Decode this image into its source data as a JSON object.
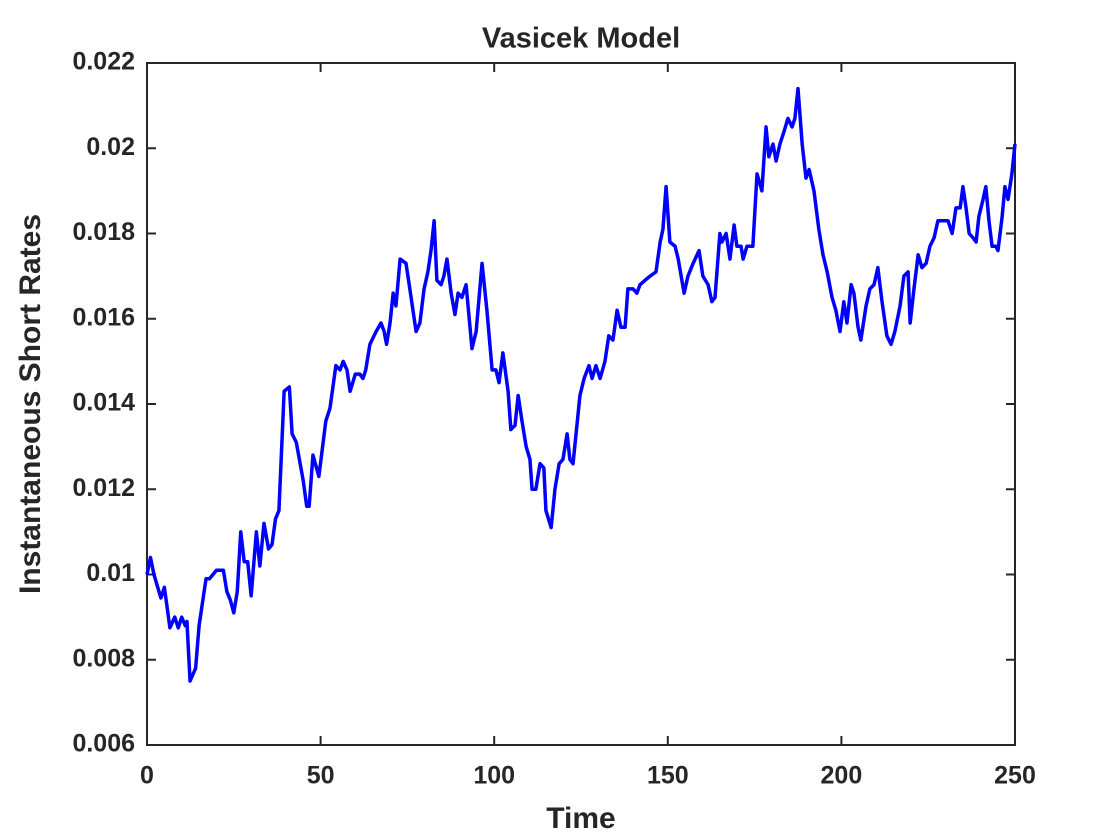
{
  "chart_data": {
    "type": "line",
    "title": "Vasicek Model",
    "x_label": "Time",
    "y_label": "Instantaneous Short Rates",
    "xlim": [
      0,
      250
    ],
    "xticks": [
      0,
      50,
      100,
      150,
      200,
      250
    ],
    "ylim": [
      0.006,
      0.022
    ],
    "yticks": [
      0.006,
      0.008,
      0.01,
      0.012,
      0.014,
      0.016,
      0.018,
      0.02,
      0.022
    ],
    "grid": false,
    "series": [
      {
        "color": "#0000ff",
        "x": [
          0,
          1,
          2,
          4,
          5,
          6.6,
          8,
          9,
          10,
          11,
          11.5,
          12.4,
          14,
          15,
          17,
          18,
          20,
          22,
          23,
          24,
          25,
          26,
          27,
          28,
          29,
          30,
          31.5,
          32.5,
          33.7,
          35,
          36,
          37,
          38,
          39.5,
          41,
          41.8,
          43,
          45,
          46,
          46.7,
          47.8,
          49.5,
          51.5,
          52.7,
          54.4,
          55.6,
          56.5,
          57.6,
          58.5,
          60,
          61.3,
          62.2,
          63,
          64.2,
          66,
          67.4,
          68.3,
          69,
          70,
          70.9,
          71.7,
          72.9,
          74.6,
          75.7,
          77.5,
          78.6,
          79.8,
          80.9,
          81.8,
          82.7,
          83.5,
          84.7,
          85.5,
          86.4,
          87.6,
          88.7,
          89.6,
          90.7,
          91.9,
          93.6,
          94.8,
          96.5,
          97.9,
          99.4,
          100.5,
          101.4,
          102.5,
          104,
          104.8,
          106,
          106.9,
          108,
          109.2,
          110.3,
          110.9,
          112,
          113.2,
          114.3,
          114.9,
          116.4,
          117.5,
          118.7,
          119.8,
          121,
          121.8,
          122.7,
          124.7,
          125.9,
          127.3,
          128.2,
          129.3,
          130.5,
          131.9,
          133,
          134.2,
          135.4,
          136.5,
          137.7,
          138.5,
          140,
          141.1,
          142,
          143.4,
          144.9,
          146.6,
          147.8,
          148.6,
          149.5,
          150.6,
          152.1,
          153,
          154.7,
          155.8,
          157.3,
          159,
          160.1,
          161.6,
          162.7,
          163.6,
          165,
          165.6,
          166.8,
          167.9,
          169.1,
          169.9,
          171.1,
          171.7,
          172.8,
          174.5,
          175.7,
          177.1,
          178.3,
          179.1,
          180.3,
          181.2,
          182.3,
          183.5,
          184.6,
          185.8,
          186.6,
          187.5,
          188.7,
          189.8,
          190.7,
          192.1,
          193.5,
          194.7,
          195.9,
          197.3,
          198.4,
          199.6,
          200.7,
          201.6,
          202.8,
          203.6,
          204.8,
          205.6,
          207.1,
          208.2,
          209.4,
          210.5,
          211.7,
          213.1,
          214.3,
          215.4,
          216.9,
          218,
          219.2,
          219.8,
          220.9,
          222.1,
          223.2,
          224.4,
          225.5,
          226.7,
          227.8,
          229.6,
          230.7,
          231.9,
          233,
          234.2,
          235,
          235.9,
          236.8,
          237.9,
          238.8,
          239.6,
          240.8,
          241.6,
          242.5,
          243.4,
          244.5,
          245.1,
          246.3,
          247.1,
          248,
          249.1,
          250
        ],
        "values": [
          0.01,
          0.0104,
          0.01,
          0.00945,
          0.0097,
          0.00875,
          0.009,
          0.00875,
          0.009,
          0.0088,
          0.0089,
          0.0075,
          0.0078,
          0.0088,
          0.0099,
          0.0099,
          0.0101,
          0.0101,
          0.0096,
          0.0094,
          0.0091,
          0.0096,
          0.011,
          0.0103,
          0.0103,
          0.0095,
          0.011,
          0.0102,
          0.0112,
          0.0106,
          0.0107,
          0.0113,
          0.0115,
          0.0143,
          0.0144,
          0.0133,
          0.0131,
          0.0122,
          0.0116,
          0.0116,
          0.0128,
          0.0123,
          0.0136,
          0.0139,
          0.0149,
          0.0148,
          0.015,
          0.0148,
          0.0143,
          0.0147,
          0.0147,
          0.0146,
          0.0148,
          0.0154,
          0.0157,
          0.0159,
          0.0157,
          0.0154,
          0.0159,
          0.0166,
          0.0163,
          0.0174,
          0.0173,
          0.0167,
          0.0157,
          0.0159,
          0.0167,
          0.0171,
          0.0176,
          0.0183,
          0.0169,
          0.0168,
          0.017,
          0.0174,
          0.0166,
          0.0161,
          0.0166,
          0.0165,
          0.0168,
          0.0153,
          0.0157,
          0.0173,
          0.0162,
          0.0148,
          0.0148,
          0.0145,
          0.0152,
          0.0143,
          0.0134,
          0.0135,
          0.0142,
          0.0136,
          0.013,
          0.0127,
          0.012,
          0.012,
          0.0126,
          0.0125,
          0.0115,
          0.0111,
          0.012,
          0.0126,
          0.0127,
          0.0133,
          0.0127,
          0.0126,
          0.0142,
          0.0146,
          0.0149,
          0.0146,
          0.0149,
          0.0146,
          0.015,
          0.0156,
          0.0155,
          0.0162,
          0.0158,
          0.0158,
          0.0167,
          0.0167,
          0.0166,
          0.0168,
          0.0169,
          0.017,
          0.0171,
          0.0178,
          0.0181,
          0.0191,
          0.0178,
          0.0177,
          0.0174,
          0.0166,
          0.017,
          0.0173,
          0.0176,
          0.017,
          0.0168,
          0.0164,
          0.0165,
          0.018,
          0.0178,
          0.018,
          0.0174,
          0.0182,
          0.0177,
          0.0177,
          0.0174,
          0.0177,
          0.0177,
          0.0194,
          0.019,
          0.0205,
          0.0198,
          0.0201,
          0.0197,
          0.0201,
          0.0204,
          0.0207,
          0.0205,
          0.0207,
          0.0214,
          0.0201,
          0.0193,
          0.0195,
          0.019,
          0.0181,
          0.0175,
          0.0171,
          0.0165,
          0.0162,
          0.0157,
          0.0164,
          0.0159,
          0.0168,
          0.0166,
          0.0158,
          0.0155,
          0.0163,
          0.0167,
          0.0168,
          0.0172,
          0.0164,
          0.0156,
          0.0154,
          0.0157,
          0.0163,
          0.017,
          0.0171,
          0.0159,
          0.0167,
          0.0175,
          0.0172,
          0.0173,
          0.0177,
          0.0179,
          0.0183,
          0.0183,
          0.0183,
          0.018,
          0.0186,
          0.0186,
          0.0191,
          0.0186,
          0.018,
          0.0179,
          0.0178,
          0.0184,
          0.0188,
          0.0191,
          0.0183,
          0.0177,
          0.0177,
          0.0176,
          0.0184,
          0.0191,
          0.0188,
          0.0194,
          0.0201
        ]
      }
    ]
  }
}
